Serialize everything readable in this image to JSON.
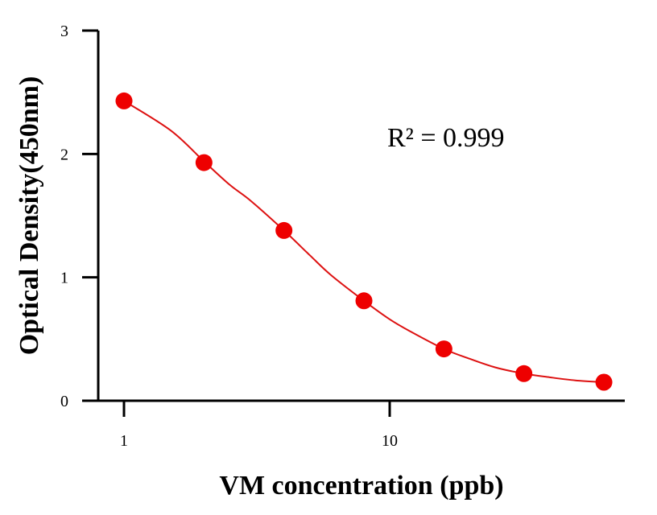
{
  "chart_data": {
    "type": "scatter",
    "title": "",
    "xlabel": "VM concentration (ppb)",
    "ylabel": "Optical Density(450nm)",
    "x_scale": "log",
    "xlim": [
      0.8,
      80
    ],
    "ylim": [
      0,
      3
    ],
    "x_ticks": [
      1,
      10
    ],
    "x_tick_labels": [
      "1",
      "10"
    ],
    "y_ticks": [
      0,
      1,
      2,
      3
    ],
    "y_tick_labels": [
      "0",
      "1",
      "2",
      "3"
    ],
    "grid": false,
    "legend": "none",
    "annotation": "R² = 0.999",
    "colors": {
      "points": "#ee0000",
      "curve": "#dd1111",
      "axes": "#000000"
    },
    "series": [
      {
        "x": [
          1,
          2,
          4,
          8,
          16,
          32,
          64
        ],
        "y": [
          2.43,
          1.93,
          1.38,
          0.81,
          0.42,
          0.22,
          0.15
        ]
      }
    ],
    "fit": {
      "model": "4PL",
      "x": [
        1,
        1.5,
        2,
        2.5,
        3,
        4,
        5,
        6,
        8,
        10,
        12,
        16,
        20,
        25,
        32,
        40,
        50,
        64
      ],
      "y": [
        2.43,
        2.19,
        1.94,
        1.75,
        1.62,
        1.38,
        1.18,
        1.02,
        0.81,
        0.66,
        0.56,
        0.42,
        0.34,
        0.27,
        0.22,
        0.19,
        0.165,
        0.15
      ]
    }
  }
}
